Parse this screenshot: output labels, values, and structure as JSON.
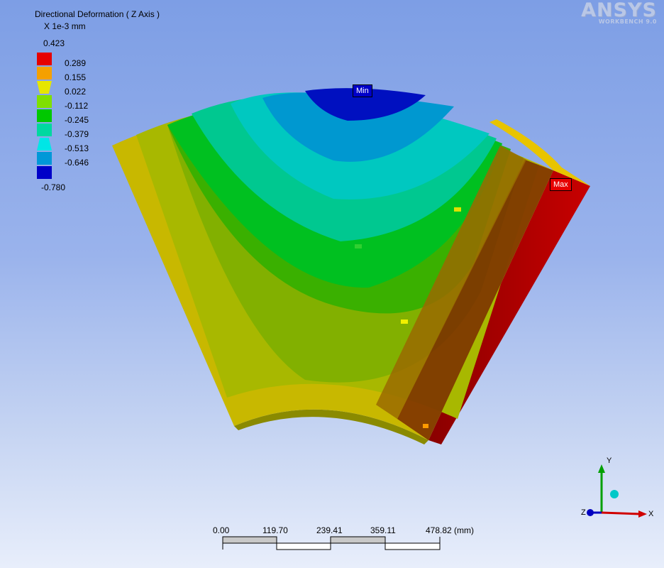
{
  "result": {
    "title": "Directional Deformation ( Z Axis )",
    "units": "X 1e-3 mm"
  },
  "legend": {
    "max_label": "0.423",
    "min_label": "-0.780",
    "items": [
      {
        "label": "0.289",
        "color": "#e60000"
      },
      {
        "label": "0.155",
        "color": "#f5a000"
      },
      {
        "label": "0.022",
        "color": "#e6e600"
      },
      {
        "label": "-0.112",
        "color": "#7fe000"
      },
      {
        "label": "-0.245",
        "color": "#00c800"
      },
      {
        "label": "-0.379",
        "color": "#00d8a0"
      },
      {
        "label": "-0.513",
        "color": "#00e6e6"
      },
      {
        "label": "-0.646",
        "color": "#0098d8"
      },
      {
        "label": "",
        "color": "#0000c8"
      }
    ]
  },
  "logo": {
    "brand": "ANSYS",
    "sub": "WORKBENCH 9.0"
  },
  "probes": {
    "min_label": "Min",
    "max_label": "Max"
  },
  "scale": {
    "ticks": [
      "0.00",
      "119.70",
      "239.41",
      "359.11",
      "478.82 (mm)"
    ]
  },
  "triad": {
    "x": "X",
    "y": "Y",
    "z": "Z"
  },
  "colors": {
    "background_top": "#7d9ee5",
    "background_bottom": "#e8eefb",
    "max_probe": "#e60000",
    "min_probe": "#0000c8"
  }
}
